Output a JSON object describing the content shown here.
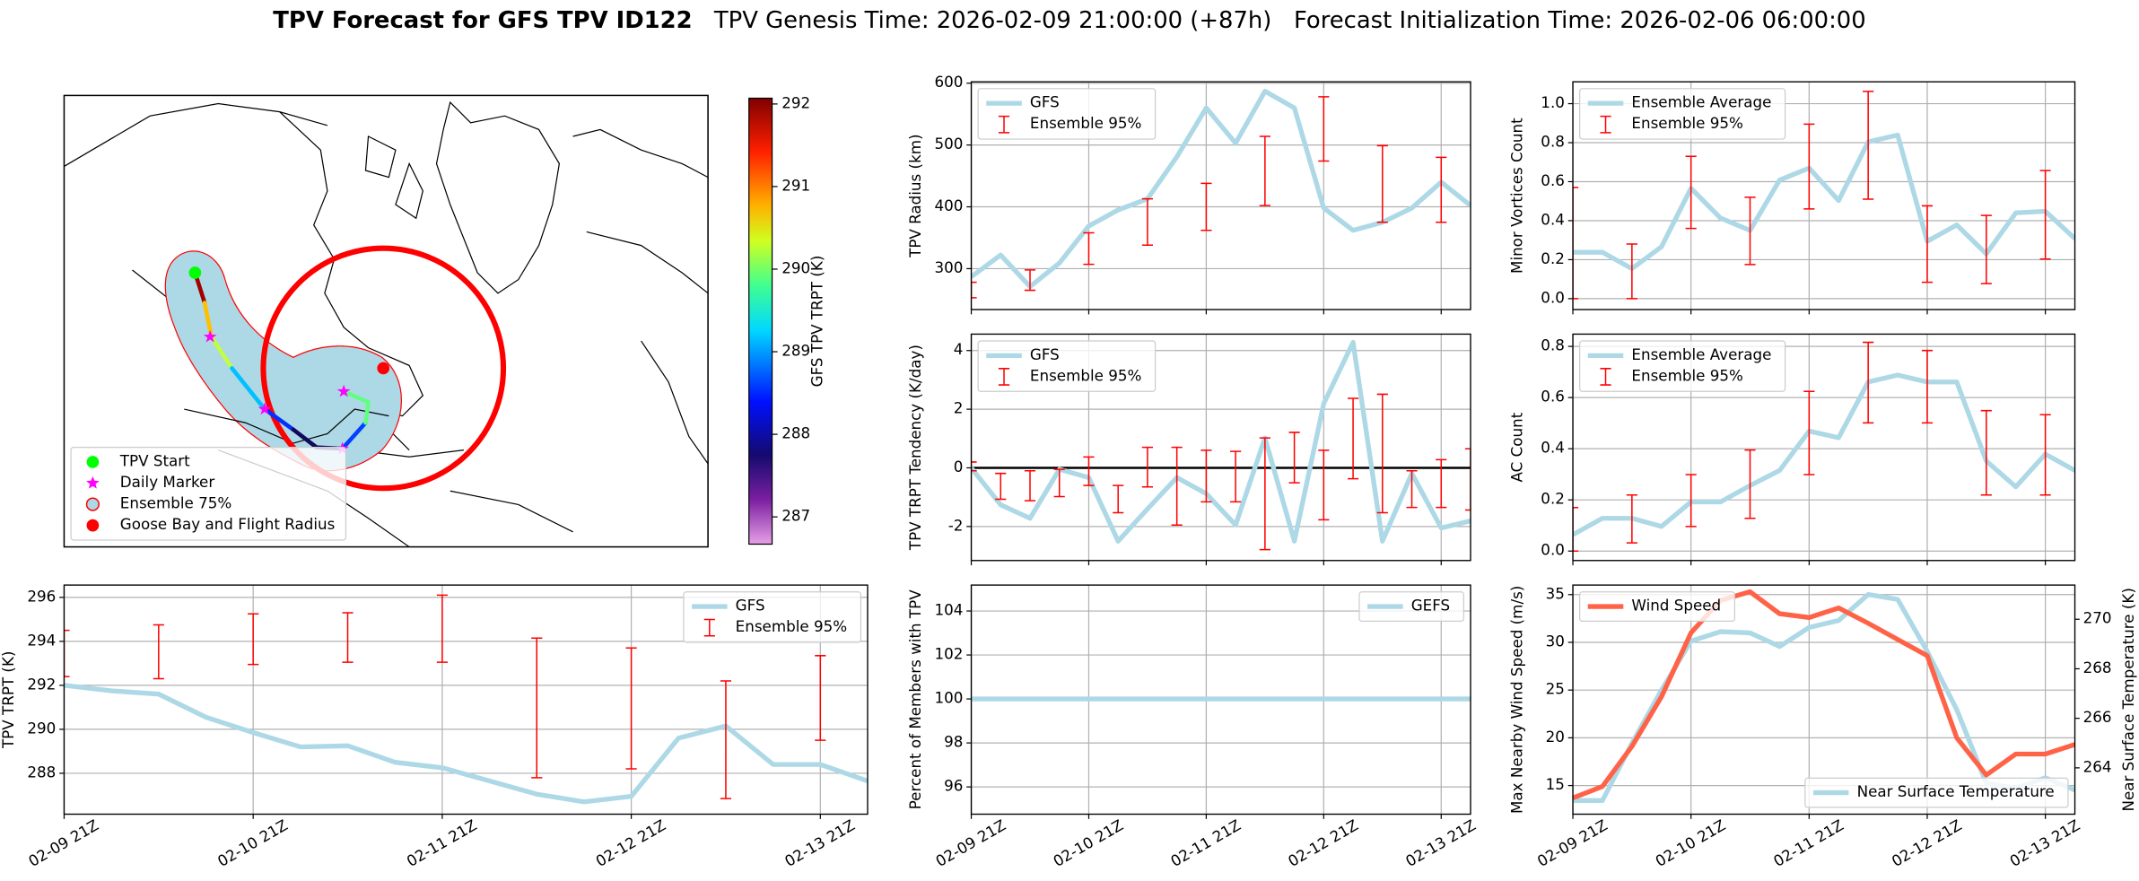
{
  "title": "TPV Forecast for GFS TPV ID122",
  "subtitle": "TPV Genesis Time: 2026-02-09 21:00:00 (+87h)   Forecast Initialization Time: 2026-02-06 06:00:00",
  "chart_data": [
    {
      "type": "map",
      "legend": "lower left",
      "legend_items": [
        {
          "name": "TPV Start",
          "color": "lime",
          "marker": "o"
        },
        {
          "name": "Daily Marker",
          "color": "magenta",
          "marker": "*"
        },
        {
          "name": "Ensemble 75%",
          "color": "lightblue",
          "edgecolor": "red",
          "marker": "o"
        },
        {
          "name": "Goose Bay and Flight Radius",
          "color": "red",
          "marker": "o"
        }
      ],
      "colorbar": {
        "label": "GFS TPV TRPT (K)",
        "clim": [
          286.67,
          292.07
        ],
        "ticks": [
          287,
          288,
          289,
          290,
          291,
          292
        ]
      }
    },
    {
      "type": "line",
      "ylabel": "TPV TRPT (K)",
      "x": [
        "02-09 21Z",
        "02-10 03Z",
        "02-10 09Z",
        "02-10 15Z",
        "02-10 21Z",
        "02-11 03Z",
        "02-11 09Z",
        "02-11 15Z",
        "02-11 21Z",
        "02-12 03Z",
        "02-12 09Z",
        "02-12 15Z",
        "02-12 21Z",
        "02-13 03Z",
        "02-13 09Z",
        "02-13 15Z",
        "02-13 21Z",
        "02-14 03Z"
      ],
      "xlim": [
        "02-09 21Z",
        "02-14 03Z"
      ],
      "xticks": [
        "02-09 21Z",
        "02-10 21Z",
        "02-11 21Z",
        "02-12 21Z",
        "02-13 21Z"
      ],
      "show_xtick_labels": true,
      "ylim": [
        286.14,
        296.56
      ],
      "yticks": [
        288,
        290,
        292,
        294,
        296
      ],
      "grid": true,
      "legend": "upper right",
      "series": [
        {
          "name": "GFS",
          "color": "lightblue",
          "values": [
            292.0,
            291.75,
            291.6,
            290.55,
            289.85,
            289.2,
            289.25,
            288.5,
            288.25,
            287.65,
            287.05,
            286.7,
            286.95,
            289.6,
            290.15,
            288.4,
            288.4,
            287.65
          ]
        },
        {
          "name": "Ensemble 95%",
          "color": "red",
          "kind": "errorbar",
          "x": [
            "02-09 21Z",
            "02-10 09Z",
            "02-10 21Z",
            "02-11 09Z",
            "02-11 21Z",
            "02-12 09Z",
            "02-12 21Z",
            "02-13 09Z",
            "02-13 21Z"
          ],
          "low": [
            292.4,
            292.3,
            292.95,
            293.05,
            293.05,
            287.8,
            288.2,
            286.85,
            289.5
          ],
          "high": [
            294.5,
            294.75,
            295.25,
            295.3,
            296.1,
            294.15,
            293.7,
            292.2,
            293.35
          ]
        }
      ]
    },
    {
      "type": "line",
      "ylabel": "TPV Radius (km)",
      "x": [
        "02-09 21Z",
        "02-10 03Z",
        "02-10 09Z",
        "02-10 15Z",
        "02-10 21Z",
        "02-11 03Z",
        "02-11 09Z",
        "02-11 15Z",
        "02-11 21Z",
        "02-12 03Z",
        "02-12 09Z",
        "02-12 15Z",
        "02-12 21Z",
        "02-13 03Z",
        "02-13 09Z",
        "02-13 15Z",
        "02-13 21Z",
        "02-14 03Z"
      ],
      "xlim": [
        "02-09 21Z",
        "02-14 03Z"
      ],
      "xticks": [
        "02-09 21Z",
        "02-10 21Z",
        "02-11 21Z",
        "02-12 21Z",
        "02-13 21Z"
      ],
      "show_xtick_labels": false,
      "ylim": [
        233.8,
        602.2
      ],
      "yticks": [
        300,
        400,
        500,
        600
      ],
      "grid": true,
      "legend": "upper left",
      "series": [
        {
          "name": "GFS",
          "color": "lightblue",
          "values": [
            286.8,
            322,
            271,
            309,
            369,
            395,
            413,
            481,
            560,
            503,
            587,
            560,
            398,
            362,
            375,
            398,
            440,
            402
          ]
        },
        {
          "name": "Ensemble 95%",
          "color": "red",
          "kind": "errorbar",
          "x": [
            "02-09 21Z",
            "02-10 09Z",
            "02-10 21Z",
            "02-11 09Z",
            "02-11 21Z",
            "02-12 09Z",
            "02-12 21Z",
            "02-13 09Z",
            "02-13 21Z"
          ],
          "low": [
            253,
            265,
            307,
            338,
            362,
            402,
            474,
            375,
            375
          ],
          "high": [
            278,
            298,
            358,
            413,
            438,
            514,
            578,
            499,
            480
          ]
        }
      ]
    },
    {
      "type": "line",
      "ylabel": "TPV TRPT Tendency (K/day)",
      "x": [
        "02-09 21Z",
        "02-10 03Z",
        "02-10 09Z",
        "02-10 15Z",
        "02-10 21Z",
        "02-11 03Z",
        "02-11 09Z",
        "02-11 15Z",
        "02-11 21Z",
        "02-12 03Z",
        "02-12 09Z",
        "02-12 15Z",
        "02-12 21Z",
        "02-13 03Z",
        "02-13 09Z",
        "02-13 15Z",
        "02-13 21Z",
        "02-14 03Z"
      ],
      "xlim": [
        "02-09 21Z",
        "02-14 03Z"
      ],
      "xticks": [
        "02-09 21Z",
        "02-10 21Z",
        "02-11 21Z",
        "02-12 21Z",
        "02-13 21Z"
      ],
      "show_xtick_labels": false,
      "ylim": [
        -3.16,
        4.56
      ],
      "yticks": [
        -2,
        0,
        2,
        4
      ],
      "grid": true,
      "legend": "upper left",
      "hline": 0,
      "series": [
        {
          "name": "GFS",
          "color": "lightblue",
          "values": [
            0,
            -1.26,
            -1.72,
            -0.05,
            -0.33,
            -2.5,
            -1.4,
            -0.33,
            -0.88,
            -1.95,
            1.02,
            -2.5,
            2.19,
            4.28,
            -2.5,
            -0.19,
            -2.05,
            -1.81
          ]
        },
        {
          "name": "Ensemble 95%",
          "color": "red",
          "kind": "errorbar",
          "x": [
            "02-09 21Z",
            "02-10 03Z",
            "02-10 09Z",
            "02-10 15Z",
            "02-10 21Z",
            "02-11 03Z",
            "02-11 09Z",
            "02-11 15Z",
            "02-11 21Z",
            "02-12 03Z",
            "02-12 09Z",
            "02-12 15Z",
            "02-12 21Z",
            "02-13 03Z",
            "02-13 09Z",
            "02-13 15Z",
            "02-13 21Z",
            "02-14 03Z"
          ],
          "low": [
            -0.1,
            -1.07,
            -1.12,
            -0.98,
            -0.6,
            -1.53,
            -0.65,
            -1.95,
            -1.16,
            -1.16,
            -2.79,
            -0.51,
            -1.77,
            -0.37,
            -1.53,
            -1.35,
            -1.35,
            -1.44
          ],
          "high": [
            0.2,
            -0.19,
            -0.1,
            -0.05,
            0.37,
            -0.6,
            0.7,
            0.7,
            0.6,
            0.56,
            1.02,
            1.21,
            0.6,
            2.37,
            2.51,
            -0.1,
            0.28,
            0.65
          ]
        }
      ]
    },
    {
      "type": "line",
      "ylabel": "Percent of Members with TPV",
      "x": [
        "02-09 21Z",
        "02-10 03Z",
        "02-10 09Z",
        "02-10 15Z",
        "02-10 21Z",
        "02-11 03Z",
        "02-11 09Z",
        "02-11 15Z",
        "02-11 21Z",
        "02-12 03Z",
        "02-12 09Z",
        "02-12 15Z",
        "02-12 21Z",
        "02-13 03Z",
        "02-13 09Z",
        "02-13 15Z",
        "02-13 21Z",
        "02-14 03Z"
      ],
      "xlim": [
        "02-09 21Z",
        "02-14 03Z"
      ],
      "xticks": [
        "02-09 21Z",
        "02-10 21Z",
        "02-11 21Z",
        "02-12 21Z",
        "02-13 21Z"
      ],
      "show_xtick_labels": true,
      "ylim": [
        94.76,
        105.18
      ],
      "yticks": [
        96,
        98,
        100,
        102,
        104
      ],
      "grid": true,
      "legend": "upper right",
      "series": [
        {
          "name": "GEFS",
          "color": "lightblue",
          "values": [
            100,
            100,
            100,
            100,
            100,
            100,
            100,
            100,
            100,
            100,
            100,
            100,
            100,
            100,
            100,
            100,
            100,
            100
          ]
        }
      ]
    },
    {
      "type": "line",
      "ylabel": "Minor Vortices Count",
      "x": [
        "02-09 21Z",
        "02-10 03Z",
        "02-10 09Z",
        "02-10 15Z",
        "02-10 21Z",
        "02-11 03Z",
        "02-11 09Z",
        "02-11 15Z",
        "02-11 21Z",
        "02-12 03Z",
        "02-12 09Z",
        "02-12 15Z",
        "02-12 21Z",
        "02-13 03Z",
        "02-13 09Z",
        "02-13 15Z",
        "02-13 21Z",
        "02-14 03Z"
      ],
      "xlim": [
        "02-09 21Z",
        "02-14 03Z"
      ],
      "xticks": [
        "02-09 21Z",
        "02-10 21Z",
        "02-11 21Z",
        "02-12 21Z",
        "02-13 21Z"
      ],
      "show_xtick_labels": false,
      "ylim": [
        -0.056,
        1.112
      ],
      "yticks": [
        {
          "value": 0,
          "label": "0.0"
        },
        {
          "value": 0.2,
          "label": "0.2"
        },
        {
          "value": 0.4,
          "label": "0.4"
        },
        {
          "value": 0.6,
          "label": "0.6"
        },
        {
          "value": 0.8,
          "label": "0.8"
        },
        {
          "value": 1,
          "label": "1.0"
        }
      ],
      "grid": true,
      "legend": "upper left",
      "series": [
        {
          "name": "Ensemble Average",
          "color": "lightblue",
          "values": [
            0.238,
            0.238,
            0.154,
            0.266,
            0.566,
            0.413,
            0.35,
            0.608,
            0.67,
            0.503,
            0.804,
            0.839,
            0.294,
            0.378,
            0.23,
            0.44,
            0.448,
            0.308
          ]
        },
        {
          "name": "Ensemble 95%",
          "color": "red",
          "kind": "errorbar",
          "x": [
            "02-09 21Z",
            "02-10 09Z",
            "02-10 21Z",
            "02-11 09Z",
            "02-11 21Z",
            "02-12 09Z",
            "02-12 21Z",
            "02-13 09Z",
            "02-13 21Z"
          ],
          "low": [
            0,
            0,
            0.36,
            0.175,
            0.46,
            0.51,
            0.084,
            0.077,
            0.203
          ],
          "high": [
            0.57,
            0.28,
            0.73,
            0.52,
            0.895,
            1.063,
            0.476,
            0.427,
            0.657
          ]
        }
      ]
    },
    {
      "type": "line",
      "ylabel": "AC Count",
      "x": [
        "02-09 21Z",
        "02-10 03Z",
        "02-10 09Z",
        "02-10 15Z",
        "02-10 21Z",
        "02-11 03Z",
        "02-11 09Z",
        "02-11 15Z",
        "02-11 21Z",
        "02-12 03Z",
        "02-12 09Z",
        "02-12 15Z",
        "02-12 21Z",
        "02-13 03Z",
        "02-13 09Z",
        "02-13 15Z",
        "02-13 21Z",
        "02-14 03Z"
      ],
      "xlim": [
        "02-09 21Z",
        "02-14 03Z"
      ],
      "xticks": [
        "02-09 21Z",
        "02-10 21Z",
        "02-11 21Z",
        "02-12 21Z",
        "02-13 21Z"
      ],
      "show_xtick_labels": false,
      "ylim": [
        -0.037,
        0.848
      ],
      "yticks": [
        {
          "value": 0,
          "label": "0.0"
        },
        {
          "value": 0.2,
          "label": "0.2"
        },
        {
          "value": 0.4,
          "label": "0.4"
        },
        {
          "value": 0.6,
          "label": "0.6"
        },
        {
          "value": 0.8,
          "label": "0.8"
        }
      ],
      "grid": true,
      "legend": "upper left",
      "series": [
        {
          "name": "Ensemble Average",
          "color": "lightblue",
          "values": [
            0.064,
            0.128,
            0.128,
            0.096,
            0.192,
            0.192,
            0.256,
            0.315,
            0.469,
            0.443,
            0.661,
            0.688,
            0.661,
            0.661,
            0.352,
            0.251,
            0.379,
            0.315
          ]
        },
        {
          "name": "Ensemble 95%",
          "color": "red",
          "kind": "errorbar",
          "x": [
            "02-09 21Z",
            "02-10 09Z",
            "02-10 21Z",
            "02-11 09Z",
            "02-11 21Z",
            "02-12 09Z",
            "02-12 21Z",
            "02-13 09Z",
            "02-13 21Z"
          ],
          "low": [
            0,
            0.032,
            0.096,
            0.128,
            0.299,
            0.501,
            0.501,
            0.219,
            0.219
          ],
          "high": [
            0.17,
            0.219,
            0.299,
            0.395,
            0.624,
            0.816,
            0.784,
            0.549,
            0.533
          ]
        }
      ]
    },
    {
      "type": "line",
      "ylabel": "Max Nearby Wind Speed (m/s)",
      "y2label": "Near Surface Temperature (K)",
      "ycolor": "#ff6347",
      "y2color": "#4169e1",
      "x": [
        "02-09 21Z",
        "02-10 03Z",
        "02-10 09Z",
        "02-10 15Z",
        "02-10 21Z",
        "02-11 03Z",
        "02-11 09Z",
        "02-11 15Z",
        "02-11 21Z",
        "02-12 03Z",
        "02-12 09Z",
        "02-12 15Z",
        "02-12 21Z",
        "02-13 03Z",
        "02-13 09Z",
        "02-13 15Z",
        "02-13 21Z",
        "02-14 03Z"
      ],
      "xlim": [
        "02-09 21Z",
        "02-14 03Z"
      ],
      "xticks": [
        "02-09 21Z",
        "02-10 21Z",
        "02-11 21Z",
        "02-12 21Z",
        "02-13 21Z"
      ],
      "show_xtick_labels": true,
      "ylim": [
        12.0,
        36.0
      ],
      "yticks": [
        15,
        20,
        25,
        30,
        35
      ],
      "y2lim": [
        262.13,
        271.38
      ],
      "y2ticks": [
        264,
        266,
        268,
        270
      ],
      "grid": true,
      "series": [
        {
          "name": "Near Surface Temperature",
          "color": "lightblue",
          "axis": "y2",
          "legend": "lower right",
          "values": [
            262.68,
            262.68,
            264.99,
            267.14,
            269.12,
            269.5,
            269.45,
            268.9,
            269.67,
            269.95,
            271.0,
            270.8,
            268.7,
            266.35,
            263.38,
            263.17,
            263.6,
            263.1
          ]
        },
        {
          "name": "Wind Speed",
          "color": "#ff6347",
          "legend": "upper left",
          "values": [
            13.7,
            14.9,
            19.1,
            24.3,
            31.0,
            34.4,
            35.3,
            33.0,
            32.6,
            33.6,
            32.0,
            30.3,
            28.6,
            20.0,
            16.1,
            18.3,
            18.3,
            19.3
          ]
        }
      ]
    }
  ]
}
